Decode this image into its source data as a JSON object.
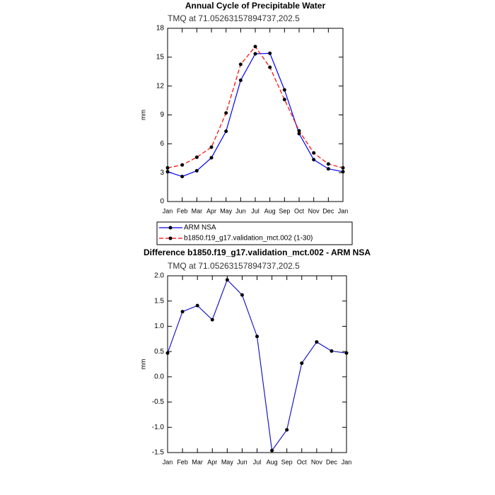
{
  "chart_data": [
    {
      "type": "line",
      "title": "Annual Cycle of Precipitable Water",
      "subtitle": "TMQ at 71.05263157894737,202.5",
      "y_label": "mm",
      "categories": [
        "Jan",
        "Feb",
        "Mar",
        "Apr",
        "May",
        "Jun",
        "Jul",
        "Aug",
        "Sep",
        "Oct",
        "Nov",
        "Dec",
        "Jan"
      ],
      "series": [
        {
          "name": "ARM NSA",
          "color": "#0000ff",
          "dash": false,
          "values": [
            3.1,
            2.6,
            3.2,
            4.55,
            7.3,
            12.6,
            15.35,
            15.4,
            11.6,
            7.05,
            4.35,
            3.4,
            3.1
          ]
        },
        {
          "name": "b1850.f19_g17.validation_mct.002 (1-30)",
          "color": "#ff0000",
          "dash": true,
          "values": [
            3.5,
            3.8,
            4.6,
            5.65,
            9.2,
            14.25,
            16.1,
            13.95,
            10.6,
            7.35,
            5.05,
            3.9,
            3.5
          ]
        }
      ],
      "ylim": [
        0,
        18
      ],
      "yticks": [
        0,
        3,
        6,
        9,
        12,
        15,
        18
      ],
      "legend": "below-left"
    },
    {
      "type": "line",
      "title": "Difference b1850.f19_g17.validation_mct.002 - ARM NSA",
      "subtitle": "TMQ at 71.05263157894737,202.5",
      "y_label": "mm",
      "categories": [
        "Jan",
        "Feb",
        "Mar",
        "Apr",
        "May",
        "Jun",
        "Jul",
        "Aug",
        "Sep",
        "Oct",
        "Nov",
        "Dec",
        "Jan"
      ],
      "values": [
        0.47,
        1.29,
        1.41,
        1.13,
        1.92,
        1.62,
        0.8,
        -1.46,
        -1.05,
        0.27,
        0.69,
        0.51,
        0.47
      ],
      "color": "#1a1acc",
      "ylim": [
        -1.5,
        2
      ],
      "yticks": [
        {
          "value": 2,
          "label": "2.0"
        },
        1.5,
        {
          "value": 1,
          "label": "1.0"
        },
        0.5,
        {
          "value": 0,
          "label": "0.0"
        },
        -0.5,
        {
          "value": -1,
          "label": "-1.0"
        },
        -1.5
      ]
    }
  ]
}
